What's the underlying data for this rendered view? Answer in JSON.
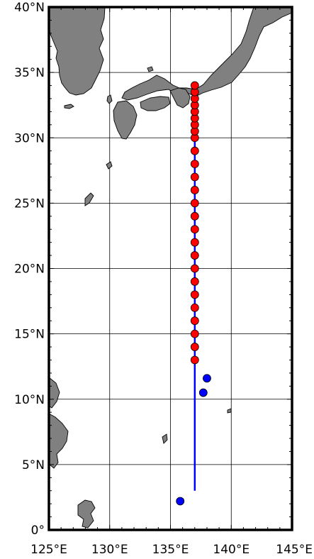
{
  "map": {
    "lon_range": [
      125,
      145
    ],
    "lat_range": [
      0,
      40
    ],
    "grid": true,
    "colors": {
      "land": "#808080",
      "ocean": "#ffffff",
      "track_line": "#0000ff",
      "station_fill": "#ff0000",
      "extra_fill": "#0000ff",
      "outline": "#000000"
    },
    "lat_labels": [
      "0°",
      "5°N",
      "10°N",
      "15°N",
      "20°N",
      "25°N",
      "30°N",
      "35°N",
      "40°N"
    ],
    "lat_values": [
      0,
      5,
      10,
      15,
      20,
      25,
      30,
      35,
      40
    ],
    "lon_labels": [
      "125°E",
      "130°E",
      "135°E",
      "140°E",
      "145°E"
    ],
    "lon_values": [
      125,
      130,
      135,
      140,
      145
    ],
    "track": {
      "lon": 137,
      "lat_start": 3,
      "lat_end": 34
    },
    "stations": [
      {
        "lon": 137,
        "lat": 13
      },
      {
        "lon": 137,
        "lat": 14
      },
      {
        "lon": 137,
        "lat": 15
      },
      {
        "lon": 137,
        "lat": 16
      },
      {
        "lon": 137,
        "lat": 17
      },
      {
        "lon": 137,
        "lat": 18
      },
      {
        "lon": 137,
        "lat": 19
      },
      {
        "lon": 137,
        "lat": 20
      },
      {
        "lon": 137,
        "lat": 21
      },
      {
        "lon": 137,
        "lat": 22
      },
      {
        "lon": 137,
        "lat": 23
      },
      {
        "lon": 137,
        "lat": 24
      },
      {
        "lon": 137,
        "lat": 25
      },
      {
        "lon": 137,
        "lat": 26
      },
      {
        "lon": 137,
        "lat": 27
      },
      {
        "lon": 137,
        "lat": 28
      },
      {
        "lon": 137,
        "lat": 29
      },
      {
        "lon": 137,
        "lat": 30
      },
      {
        "lon": 137,
        "lat": 30.5
      },
      {
        "lon": 137,
        "lat": 31
      },
      {
        "lon": 137,
        "lat": 31.5
      },
      {
        "lon": 137,
        "lat": 32
      },
      {
        "lon": 137,
        "lat": 32.5
      },
      {
        "lon": 137,
        "lat": 33
      },
      {
        "lon": 137,
        "lat": 33.5
      },
      {
        "lon": 137,
        "lat": 34
      }
    ],
    "extra_points": [
      {
        "lon": 138.0,
        "lat": 11.6
      },
      {
        "lon": 137.7,
        "lat": 10.5
      },
      {
        "lon": 135.8,
        "lat": 2.2
      }
    ]
  }
}
